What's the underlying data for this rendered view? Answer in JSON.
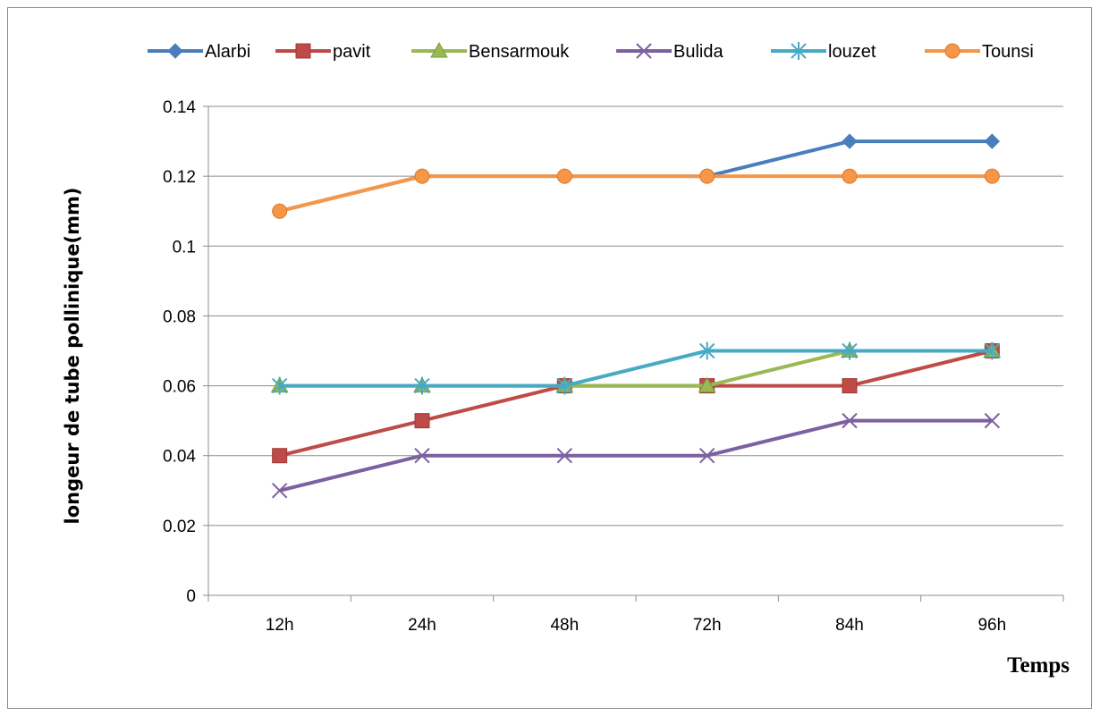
{
  "chart_data": {
    "type": "line",
    "categories": [
      "12h",
      "24h",
      "48h",
      "72h",
      "84h",
      "96h"
    ],
    "ylabel": "longeur de tube pollinique(mm)",
    "xlabel": "Temps",
    "ylim": [
      0,
      0.14
    ],
    "yticks": [
      0,
      0.02,
      0.04,
      0.06,
      0.08,
      0.1,
      0.12,
      0.14
    ],
    "ytick_labels": [
      "0",
      "0.02",
      "0.04",
      "0.06",
      "0.08",
      "0.1",
      "0.12",
      "0.14"
    ],
    "grid": "horizontal",
    "legend": "top",
    "series": [
      {
        "name": "Alarbi",
        "color": "#4a7ebb",
        "marker": "diamond",
        "values": [
          0.11,
          0.12,
          0.12,
          0.12,
          0.13,
          0.13
        ]
      },
      {
        "name": "pavit",
        "color": "#be4b48",
        "marker": "square",
        "values": [
          0.04,
          0.05,
          0.06,
          0.06,
          0.06,
          0.07
        ]
      },
      {
        "name": "Bensarmouk",
        "color": "#98b954",
        "marker": "triangle",
        "values": [
          0.06,
          0.06,
          0.06,
          0.06,
          0.07,
          0.07
        ]
      },
      {
        "name": "Bulida",
        "color": "#7d60a0",
        "marker": "x",
        "values": [
          0.03,
          0.04,
          0.04,
          0.04,
          0.05,
          0.05
        ]
      },
      {
        "name": "louzet",
        "color": "#46aac5",
        "marker": "star",
        "values": [
          0.06,
          0.06,
          0.06,
          0.07,
          0.07,
          0.07
        ]
      },
      {
        "name": "Tounsi",
        "color": "#f79646",
        "marker": "circle",
        "values": [
          0.11,
          0.12,
          0.12,
          0.12,
          0.12,
          0.12
        ]
      }
    ]
  }
}
